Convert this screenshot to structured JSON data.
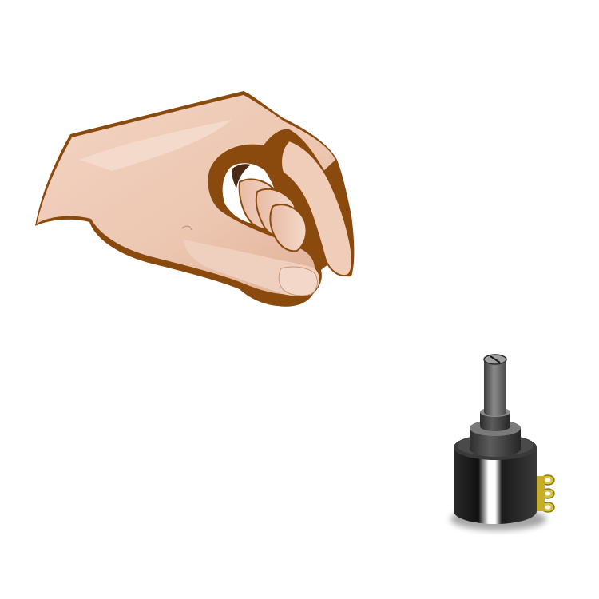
{
  "scene": {
    "background": "#ffffff",
    "objects": [
      {
        "name": "hand",
        "icon": "pinching-hand-icon",
        "skin": "#efc9b4",
        "outline": "#8a4a0e"
      },
      {
        "name": "potentiometer",
        "icon": "rotary-potentiometer-icon",
        "body": "#1c1c1c",
        "shaft": "#6e6e6e",
        "terminals": "#d9c23a"
      }
    ]
  }
}
